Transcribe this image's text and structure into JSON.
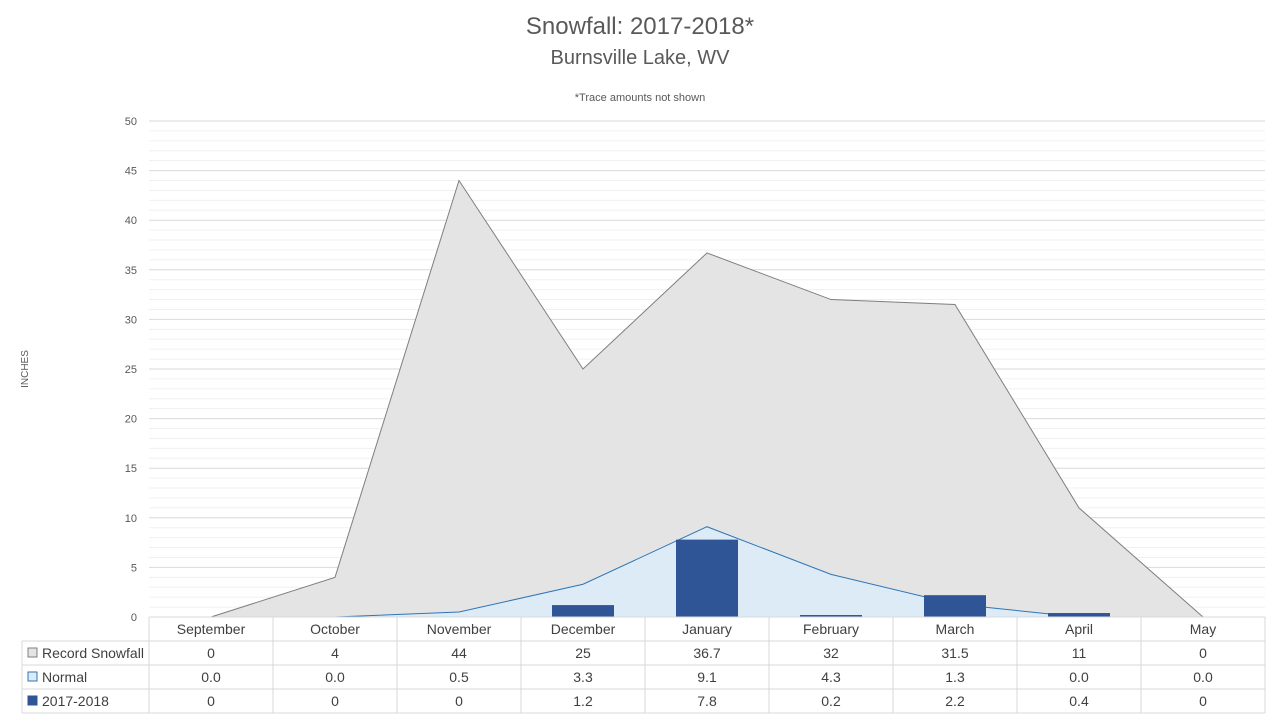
{
  "chart_data": {
    "type": "area",
    "title": "Snowfall: 2017-2018*",
    "subtitle": "Burnsville Lake, WV",
    "note": "*Trace amounts not shown",
    "ylabel": "INCHES",
    "ylim": [
      0,
      50
    ],
    "yticks": [
      "0",
      "5",
      "10",
      "15",
      "20",
      "25",
      "30",
      "35",
      "40",
      "45",
      "50"
    ],
    "grid": true,
    "legend": "data-table-left",
    "categories": [
      "September",
      "October",
      "November",
      "December",
      "January",
      "February",
      "March",
      "April",
      "May"
    ],
    "series": [
      {
        "name": "Record Snowfall",
        "kind": "area",
        "color": "#e4e4e4",
        "line_color": "#7f7f7f",
        "values": [
          0,
          4,
          44,
          25,
          36.7,
          32,
          31.5,
          11,
          0
        ],
        "labels": [
          "0",
          "4",
          "44",
          "25",
          "36.7",
          "32",
          "31.5",
          "11",
          "0"
        ]
      },
      {
        "name": "Normal",
        "kind": "area",
        "color": "#ddebf7",
        "line_color": "#2e75b6",
        "values": [
          0.0,
          0.0,
          0.5,
          3.3,
          9.1,
          4.3,
          1.3,
          0.0,
          0.0
        ],
        "labels": [
          "0.0",
          "0.0",
          "0.5",
          "3.3",
          "9.1",
          "4.3",
          "1.3",
          "0.0",
          "0.0"
        ]
      },
      {
        "name": "2017-2018",
        "kind": "bar",
        "color": "#2f5597",
        "values": [
          0,
          0,
          0,
          1.2,
          7.8,
          0.2,
          2.2,
          0.4,
          0
        ],
        "labels": [
          "0",
          "0",
          "0",
          "1.2",
          "7.8",
          "0.2",
          "2.2",
          "0.4",
          "0"
        ]
      }
    ]
  }
}
